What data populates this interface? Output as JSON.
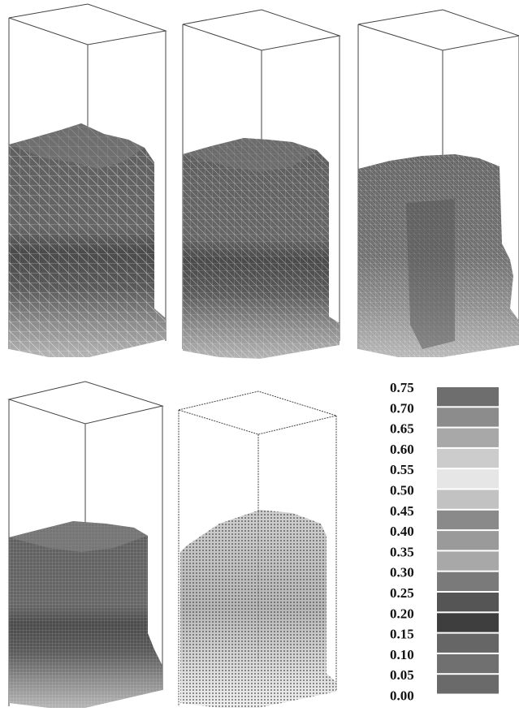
{
  "panels": [
    {
      "id": "panel-1",
      "mesh": "coarse"
    },
    {
      "id": "panel-2",
      "mesh": "medium"
    },
    {
      "id": "panel-3",
      "mesh": "fine"
    },
    {
      "id": "panel-4",
      "mesh": "finer"
    },
    {
      "id": "panel-5",
      "mesh": "particles"
    }
  ],
  "legend": {
    "labels": [
      "0.75",
      "0.70",
      "0.65",
      "0.60",
      "0.55",
      "0.50",
      "0.45",
      "0.40",
      "0.35",
      "0.30",
      "0.25",
      "0.20",
      "0.15",
      "0.10",
      "0.05",
      "0.00"
    ],
    "swatch_colors": [
      "#6e6e6e",
      "#8c8c8c",
      "#a8a8a8",
      "#cccccc",
      "#e6e6e6",
      "#c2c2c2",
      "#8a8a8a",
      "#9a9a9a",
      "#a8a8a8",
      "#7a7a7a",
      "#555555",
      "#3e3e3e",
      "#666666",
      "#707070",
      "#6a6a6a"
    ]
  },
  "colors": {
    "material_dark": "#5a5a5a",
    "material_mid": "#707070",
    "material_band": "#4a4a4a",
    "material_light": "#a9a9a9",
    "box_line": "#444444"
  }
}
